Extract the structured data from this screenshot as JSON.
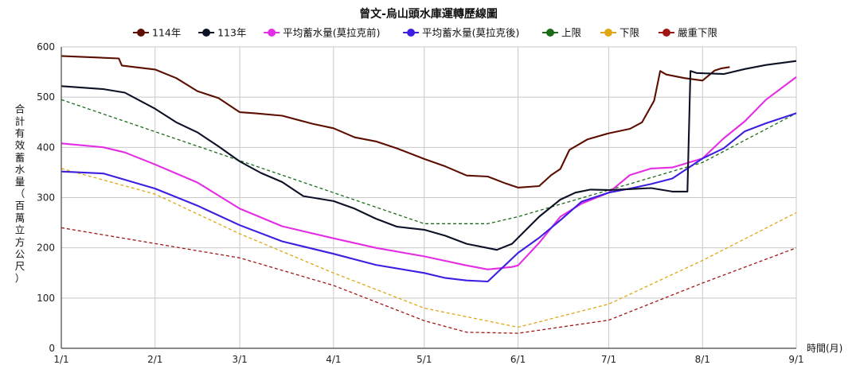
{
  "chart_data": {
    "type": "line",
    "title": "曾文-烏山頭水庫運轉歷線圖",
    "xlabel": "時間(月)",
    "ylabel": "合計有效蓄水量（百萬立方公尺）",
    "x_ticks": [
      "1/1",
      "2/1",
      "3/1",
      "4/1",
      "5/1",
      "6/1",
      "7/1",
      "8/1",
      "9/1"
    ],
    "y_ticks": [
      0,
      100,
      200,
      300,
      400,
      500,
      600
    ],
    "ylim": [
      0,
      600
    ],
    "xlim": [
      "1/1",
      "9/1"
    ],
    "grid": true,
    "legend_position": "top",
    "series": [
      {
        "name": "114年",
        "color": "#5c0f00",
        "style": "solid",
        "marker": "circle",
        "points": [
          [
            "1/1",
            582
          ],
          [
            "1/20",
            577
          ],
          [
            "1/21",
            563
          ],
          [
            "2/1",
            555
          ],
          [
            "2/8",
            538
          ],
          [
            "2/15",
            512
          ],
          [
            "2/22",
            498
          ],
          [
            "3/1",
            470
          ],
          [
            "3/6",
            468
          ],
          [
            "3/15",
            463
          ],
          [
            "3/25",
            447
          ],
          [
            "4/1",
            438
          ],
          [
            "4/8",
            420
          ],
          [
            "4/15",
            412
          ],
          [
            "4/22",
            398
          ],
          [
            "5/1",
            377
          ],
          [
            "5/8",
            362
          ],
          [
            "5/15",
            344
          ],
          [
            "5/22",
            342
          ],
          [
            "5/28",
            328
          ],
          [
            "6/1",
            320
          ],
          [
            "6/8",
            323
          ],
          [
            "6/12",
            345
          ],
          [
            "6/15",
            357
          ],
          [
            "6/18",
            395
          ],
          [
            "6/24",
            416
          ],
          [
            "7/1",
            428
          ],
          [
            "7/8",
            437
          ],
          [
            "7/12",
            450
          ],
          [
            "7/16",
            493
          ],
          [
            "7/18",
            552
          ],
          [
            "7/20",
            545
          ],
          [
            "7/26",
            538
          ],
          [
            "8/1",
            533
          ],
          [
            "8/5",
            553
          ],
          [
            "8/7",
            557
          ],
          [
            "8/10",
            560
          ]
        ]
      },
      {
        "name": "113年",
        "color": "#0d1126",
        "style": "solid",
        "marker": "circle",
        "points": [
          [
            "1/1",
            522
          ],
          [
            "1/15",
            516
          ],
          [
            "1/22",
            509
          ],
          [
            "2/1",
            477
          ],
          [
            "2/8",
            450
          ],
          [
            "2/15",
            430
          ],
          [
            "2/22",
            402
          ],
          [
            "3/1",
            372
          ],
          [
            "3/8",
            349
          ],
          [
            "3/15",
            331
          ],
          [
            "3/22",
            303
          ],
          [
            "4/1",
            293
          ],
          [
            "4/8",
            278
          ],
          [
            "4/15",
            258
          ],
          [
            "4/22",
            242
          ],
          [
            "5/1",
            236
          ],
          [
            "5/8",
            224
          ],
          [
            "5/15",
            208
          ],
          [
            "5/25",
            196
          ],
          [
            "5/30",
            208
          ],
          [
            "6/3",
            232
          ],
          [
            "6/8",
            262
          ],
          [
            "6/15",
            296
          ],
          [
            "6/20",
            310
          ],
          [
            "6/25",
            316
          ],
          [
            "7/1",
            315
          ],
          [
            "7/8",
            317
          ],
          [
            "7/15",
            319
          ],
          [
            "7/22",
            312
          ],
          [
            "7/27",
            312
          ],
          [
            "7/28",
            552
          ],
          [
            "7/30",
            548
          ],
          [
            "8/8",
            546
          ],
          [
            "8/15",
            556
          ],
          [
            "8/22",
            564
          ],
          [
            "9/1",
            572
          ]
        ]
      },
      {
        "name": "平均蓄水量(莫拉克前)",
        "color": "#e42ee4",
        "style": "solid",
        "marker": "circle",
        "points": [
          [
            "1/1",
            408
          ],
          [
            "1/15",
            400
          ],
          [
            "1/22",
            390
          ],
          [
            "2/1",
            366
          ],
          [
            "2/15",
            330
          ],
          [
            "3/1",
            278
          ],
          [
            "3/15",
            243
          ],
          [
            "4/1",
            219
          ],
          [
            "4/15",
            200
          ],
          [
            "5/1",
            183
          ],
          [
            "5/15",
            165
          ],
          [
            "5/22",
            157
          ],
          [
            "5/30",
            162
          ],
          [
            "6/1",
            165
          ],
          [
            "6/8",
            210
          ],
          [
            "6/15",
            262
          ],
          [
            "6/22",
            288
          ],
          [
            "7/1",
            310
          ],
          [
            "7/8",
            345
          ],
          [
            "7/15",
            358
          ],
          [
            "7/22",
            360
          ],
          [
            "8/1",
            378
          ],
          [
            "8/8",
            418
          ],
          [
            "8/15",
            452
          ],
          [
            "8/22",
            495
          ],
          [
            "9/1",
            540
          ]
        ]
      },
      {
        "name": "平均蓄水量(莫拉克後)",
        "color": "#3c1fe0",
        "style": "solid",
        "marker": "circle",
        "points": [
          [
            "1/1",
            352
          ],
          [
            "1/15",
            348
          ],
          [
            "2/1",
            318
          ],
          [
            "2/15",
            284
          ],
          [
            "3/1",
            245
          ],
          [
            "3/15",
            213
          ],
          [
            "4/1",
            188
          ],
          [
            "4/15",
            166
          ],
          [
            "5/1",
            150
          ],
          [
            "5/8",
            140
          ],
          [
            "5/15",
            135
          ],
          [
            "5/22",
            133
          ],
          [
            "6/1",
            190
          ],
          [
            "6/8",
            220
          ],
          [
            "6/15",
            255
          ],
          [
            "6/22",
            292
          ],
          [
            "7/1",
            310
          ],
          [
            "7/8",
            318
          ],
          [
            "7/15",
            327
          ],
          [
            "7/22",
            338
          ],
          [
            "8/1",
            378
          ],
          [
            "8/8",
            398
          ],
          [
            "8/15",
            432
          ],
          [
            "8/22",
            448
          ],
          [
            "9/1",
            468
          ]
        ]
      },
      {
        "name": "上限",
        "color": "#1b6b1b",
        "style": "dashed",
        "marker": "circle",
        "points": [
          [
            "1/1",
            495
          ],
          [
            "5/1",
            248
          ],
          [
            "5/22",
            248
          ],
          [
            "6/1",
            262
          ],
          [
            "7/1",
            315
          ],
          [
            "8/1",
            370
          ],
          [
            "9/1",
            468
          ]
        ]
      },
      {
        "name": "下限",
        "color": "#dfa716",
        "style": "dashed",
        "marker": "circle",
        "points": [
          [
            "1/1",
            358
          ],
          [
            "2/1",
            307
          ],
          [
            "3/1",
            228
          ],
          [
            "4/1",
            150
          ],
          [
            "5/1",
            80
          ],
          [
            "6/1",
            42
          ],
          [
            "7/1",
            88
          ],
          [
            "8/1",
            175
          ],
          [
            "9/1",
            270
          ]
        ]
      },
      {
        "name": "嚴重下限",
        "color": "#a31515",
        "style": "dashed",
        "marker": "circle",
        "points": [
          [
            "1/1",
            240
          ],
          [
            "3/1",
            180
          ],
          [
            "4/1",
            125
          ],
          [
            "5/1",
            55
          ],
          [
            "5/15",
            32
          ],
          [
            "6/1",
            30
          ],
          [
            "7/1",
            56
          ],
          [
            "8/1",
            130
          ],
          [
            "9/1",
            200
          ]
        ]
      }
    ]
  }
}
